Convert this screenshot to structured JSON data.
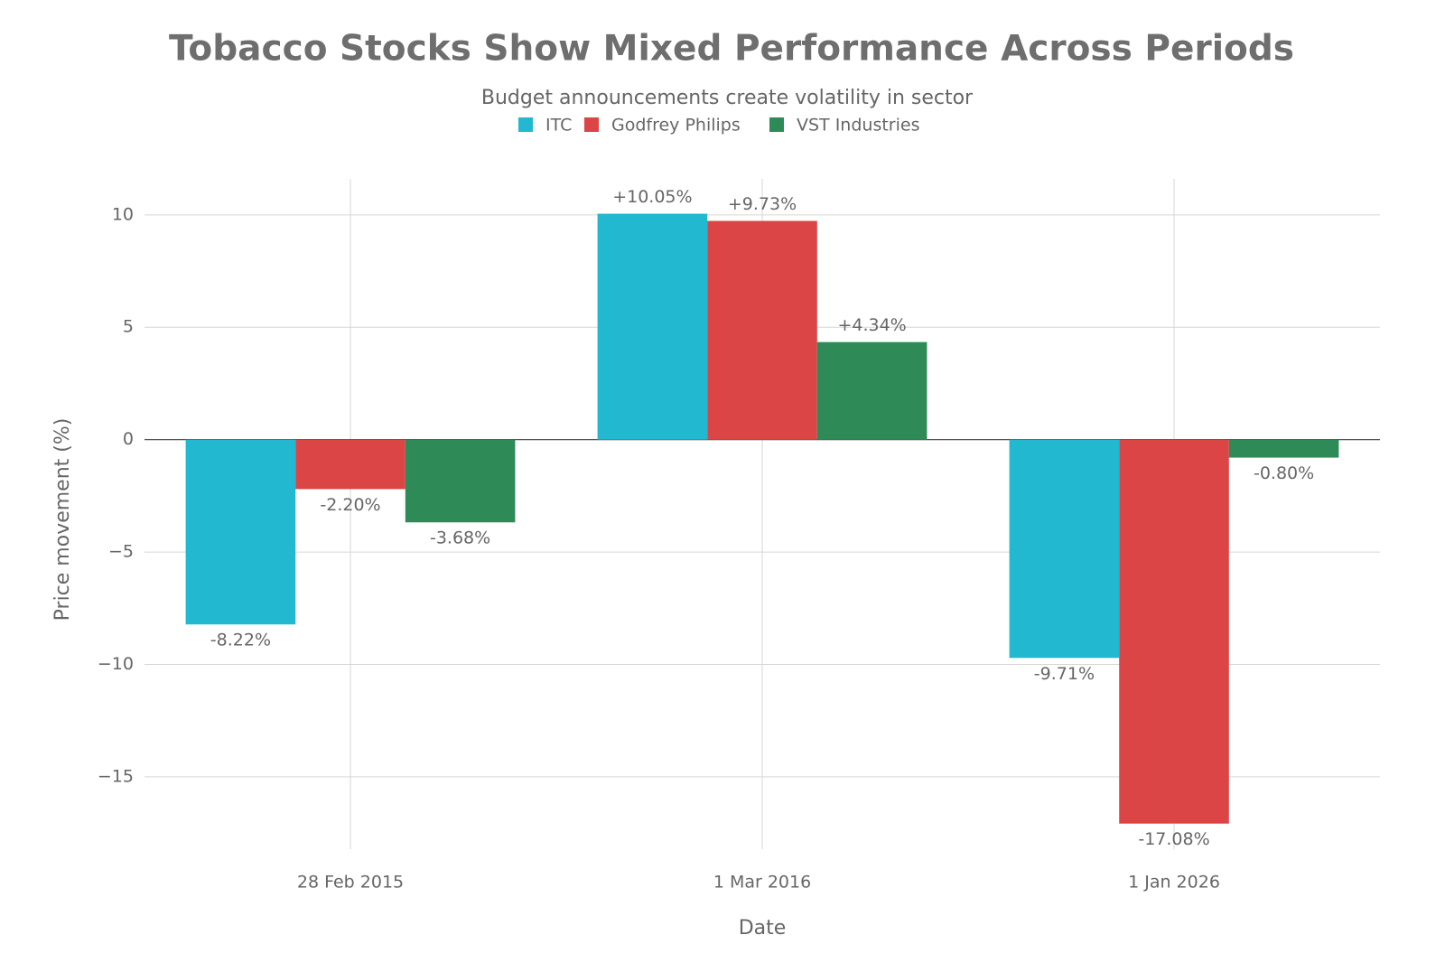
{
  "chart_data": {
    "type": "bar",
    "title": "Tobacco Stocks Show Mixed Performance Across Periods",
    "subtitle": "Budget announcements create volatility in sector",
    "x_label": "Date",
    "y_label": "Price movement (%)",
    "categories": [
      "28 Feb 2015",
      "1 Mar 2016",
      "1 Jan 2026"
    ],
    "series": [
      {
        "name": "ITC",
        "color": "#22b8cf",
        "values": [
          -8.22,
          10.05,
          -9.71
        ],
        "value_labels": [
          "-8.22%",
          "+10.05%",
          "-9.71%"
        ]
      },
      {
        "name": "Godfrey Philips",
        "color": "#db4545",
        "values": [
          -2.2,
          9.73,
          -17.08
        ],
        "value_labels": [
          "-2.20%",
          "+9.73%",
          "-17.08%"
        ]
      },
      {
        "name": "VST Industries",
        "color": "#2e8b57",
        "values": [
          -3.68,
          4.34,
          -0.8
        ],
        "value_labels": [
          "-3.68%",
          "+4.34%",
          "-0.80%"
        ]
      }
    ],
    "ylim": [
      -18.7,
      11.6
    ],
    "yticks": [
      {
        "value": -15,
        "label": "−15"
      },
      {
        "value": -10,
        "label": "−10"
      },
      {
        "value": -5,
        "label": "−5"
      },
      0,
      5,
      10
    ],
    "grid": true,
    "legend_position": "top"
  }
}
